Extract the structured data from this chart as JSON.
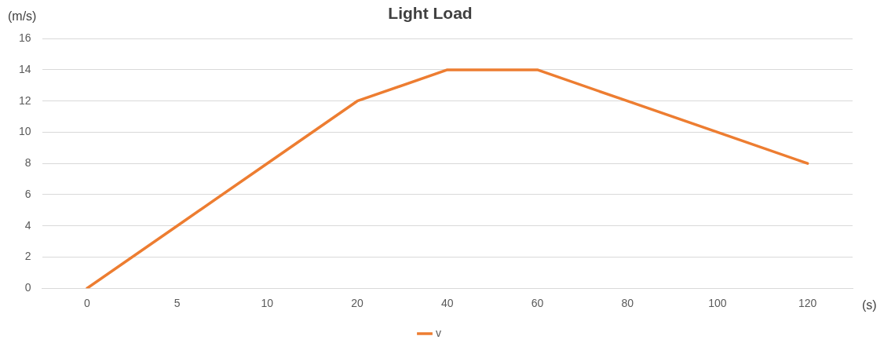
{
  "chart_data": {
    "type": "line",
    "title": "Light Load",
    "xlabel": "(s)",
    "ylabel": "(m/s)",
    "categories": [
      "0",
      "5",
      "10",
      "20",
      "40",
      "60",
      "80",
      "100",
      "120"
    ],
    "series": [
      {
        "name": "v",
        "color": "#ed7d31",
        "values": [
          0,
          4,
          8,
          12,
          14,
          14,
          12,
          10,
          8
        ]
      }
    ],
    "ylim": [
      0,
      16
    ],
    "yticks": [
      0,
      2,
      4,
      6,
      8,
      10,
      12,
      14,
      16
    ],
    "grid": "y",
    "legend": "bottom",
    "marker": "none",
    "line_style": "solid"
  }
}
